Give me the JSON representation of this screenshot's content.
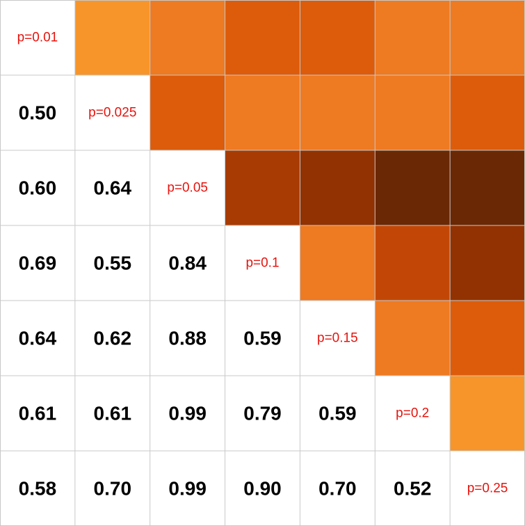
{
  "chart_data": {
    "type": "heatmap",
    "labels": [
      "p=0.01",
      "p=0.025",
      "p=0.05",
      "p=0.1",
      "p=0.15",
      "p=0.2",
      "p=0.25"
    ],
    "values": [
      [
        null,
        0.5,
        0.6,
        0.69,
        0.64,
        0.61,
        0.58
      ],
      [
        0.5,
        null,
        0.64,
        0.55,
        0.62,
        0.61,
        0.7
      ],
      [
        0.6,
        0.64,
        null,
        0.84,
        0.88,
        0.99,
        0.99
      ],
      [
        0.69,
        0.55,
        0.84,
        null,
        0.59,
        0.79,
        0.9
      ],
      [
        0.64,
        0.62,
        0.88,
        0.59,
        null,
        0.59,
        0.7
      ],
      [
        0.61,
        0.61,
        0.99,
        0.79,
        0.59,
        null,
        0.52
      ],
      [
        0.58,
        0.7,
        0.99,
        0.9,
        0.7,
        0.52,
        null
      ]
    ],
    "lower_triangle": "numbers",
    "upper_triangle": "color",
    "diagonal": "labels",
    "colors": {
      "scale": [
        "#f7952a",
        "#ee7a22",
        "#dc5c0b",
        "#c24706",
        "#a73b03",
        "#923202",
        "#6a2804"
      ],
      "diag_text": "#e8120c",
      "lower_text": "#000000",
      "grid": "#c8c8c8"
    }
  }
}
